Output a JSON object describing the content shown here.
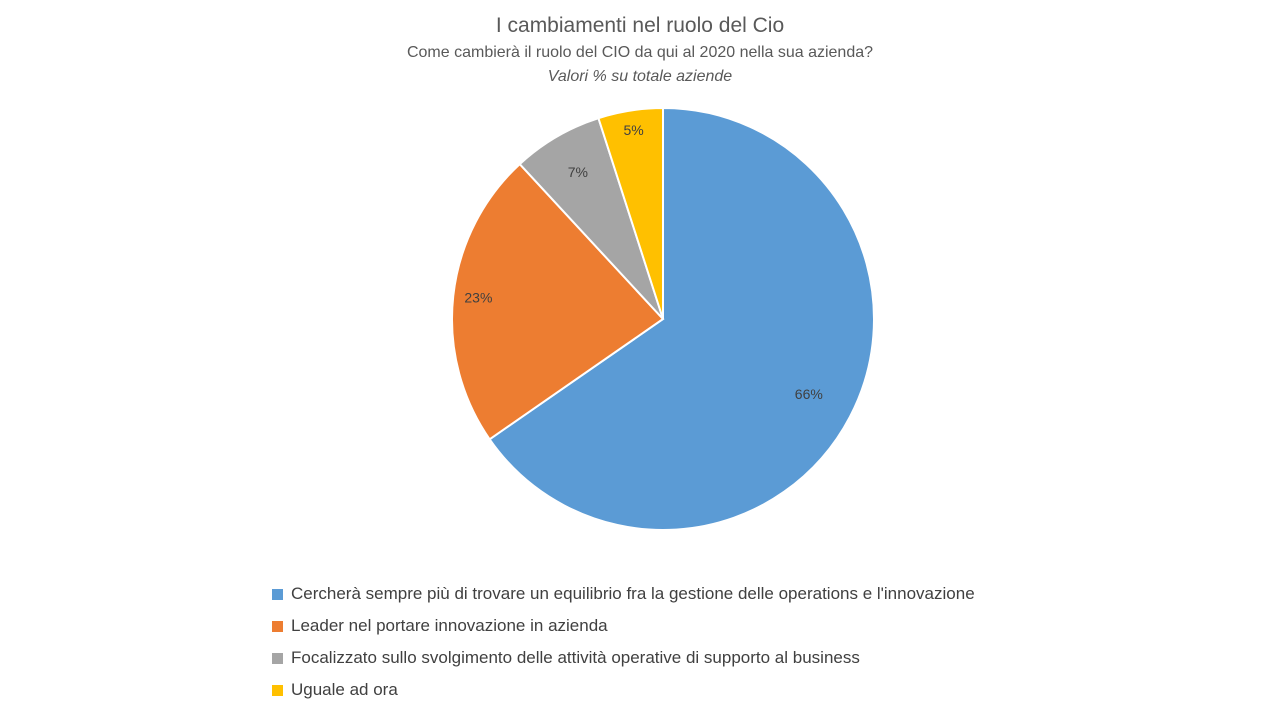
{
  "chart_data": {
    "type": "pie",
    "title": "I cambiamenti nel ruolo del Cio",
    "subtitle": "Come cambierà il ruolo del CIO da qui al 2020 nella sua azienda?",
    "subtitle2": "Valori % su totale aziende",
    "categories": [
      "Cercherà sempre più di trovare un equilibrio fra la gestione delle operations e l'innovazione",
      "Leader nel portare innovazione in azienda",
      "Focalizzato sullo svolgimento delle attività operative di supporto al business",
      "Uguale ad ora"
    ],
    "values": [
      66,
      23,
      7,
      5
    ],
    "data_labels": [
      "66%",
      "23%",
      "7%",
      "5%"
    ],
    "colors": [
      "#5b9bd5",
      "#ed7d31",
      "#a5a5a5",
      "#ffc000"
    ],
    "legend_position": "bottom"
  }
}
